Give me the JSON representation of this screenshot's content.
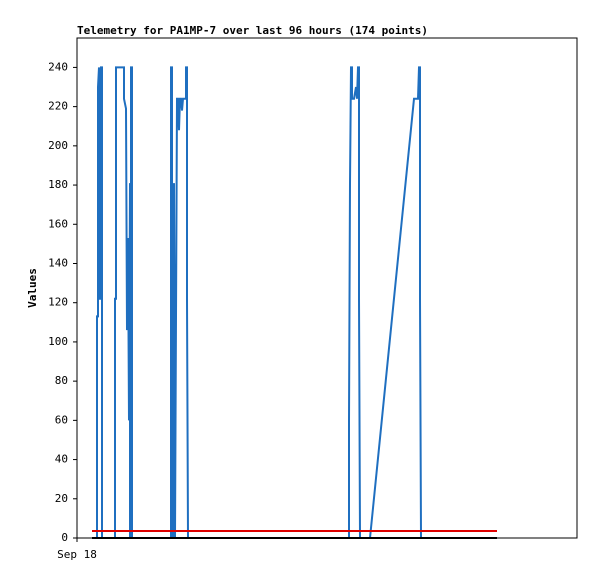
{
  "chart_data": {
    "type": "line",
    "title": "Telemetry for PA1MP-7 over last 96 hours (174 points)",
    "y_label": "Values",
    "xlim": [
      0,
      100
    ],
    "xticks": [
      {
        "value": 0,
        "label": "Sep 18"
      }
    ],
    "ylim": [
      0,
      255
    ],
    "yticks": [
      0,
      20,
      40,
      60,
      80,
      100,
      120,
      140,
      160,
      180,
      200,
      220,
      240
    ],
    "grid": false,
    "series": [
      {
        "color": "#1f6fc0",
        "x": [
          3,
          4,
          4,
          4.2,
          4.2,
          4.4,
          4.6,
          4.8,
          4.8,
          5,
          5,
          7.6,
          7.6,
          7.8,
          7.8,
          9.4,
          9.4,
          9.8,
          10,
          10.2,
          10.4,
          10.6,
          10.6,
          10.8,
          10.8,
          11,
          11,
          18.8,
          18.8,
          19,
          19,
          19.4,
          19.4,
          19.6,
          19.8,
          20,
          20.2,
          20.4,
          20.6,
          20.8,
          21,
          21.2,
          21.8,
          21.8,
          22,
          22,
          22.2,
          54.4,
          54.4,
          54.6,
          54.8,
          55,
          55,
          55.4,
          55.8,
          56,
          56.2,
          56.4,
          56.4,
          56.6,
          58.6,
          67.4,
          68.2,
          68.4,
          68.6,
          68.6,
          68.8,
          84
        ],
        "values": [
          0,
          0,
          113,
          113,
          230,
          240,
          122,
          122,
          240,
          240,
          0,
          0,
          122,
          122,
          240,
          240,
          224,
          219,
          106,
          153,
          60,
          181,
          0,
          0,
          240,
          240,
          0,
          0,
          240,
          240,
          0,
          0,
          181,
          0,
          113,
          224,
          224,
          208,
          224,
          224,
          218,
          224,
          224,
          240,
          240,
          122,
          0,
          0,
          60,
          181,
          240,
          240,
          224,
          224,
          230,
          224,
          240,
          240,
          122,
          0,
          0,
          224,
          224,
          240,
          240,
          122,
          0,
          0
        ]
      },
      {
        "color": "#e00000",
        "x": [
          3,
          84
        ],
        "values": [
          3.6,
          3.6
        ]
      },
      {
        "color": "#000000",
        "x": [
          3,
          84
        ],
        "values": [
          0,
          0
        ]
      }
    ]
  }
}
